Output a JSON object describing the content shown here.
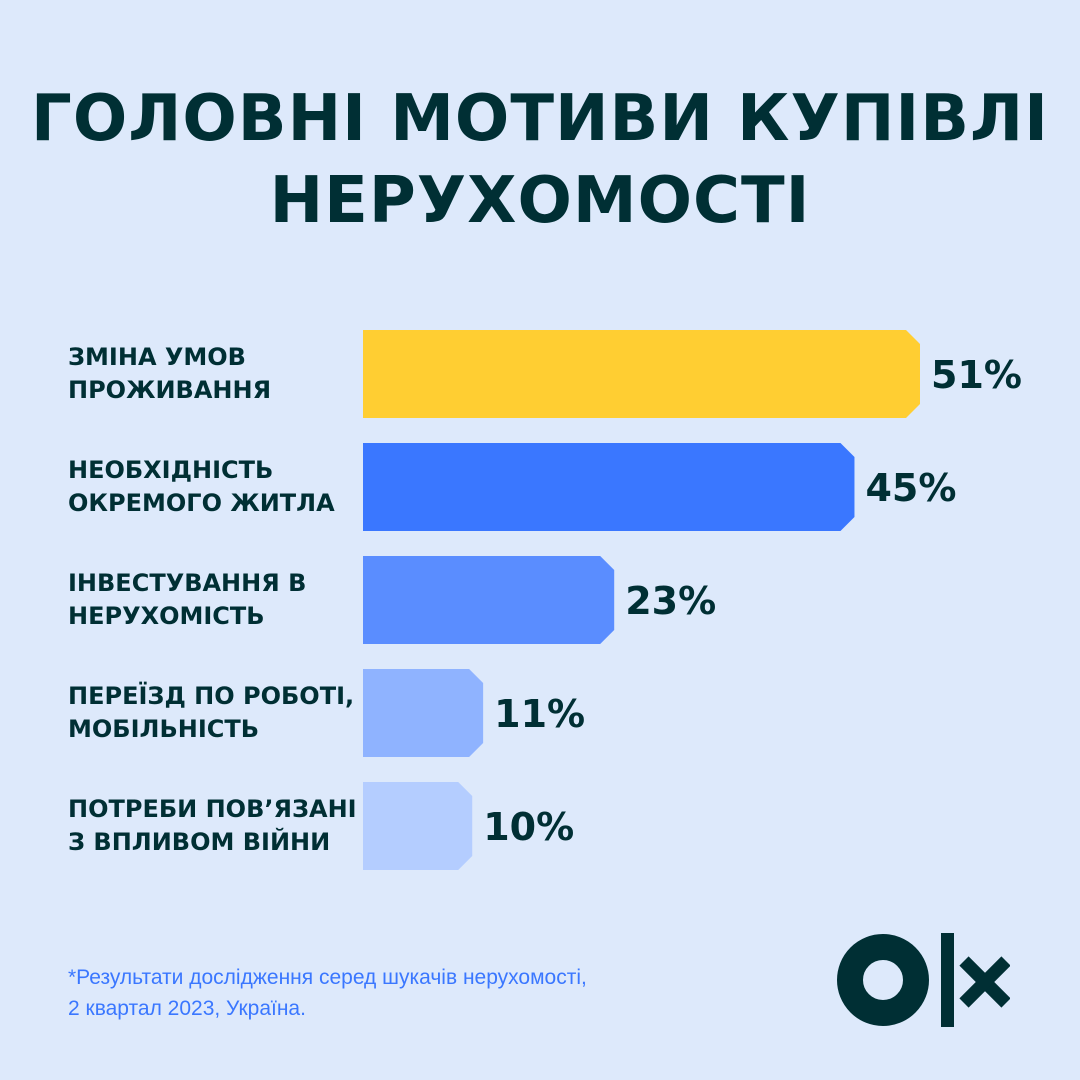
{
  "title": {
    "line1": "ГОЛОВНІ МОТИВИ КУПІВЛІ",
    "line2": "НЕРУХОМОСТІ"
  },
  "chart_data": {
    "type": "bar",
    "orientation": "horizontal",
    "title": "ГОЛОВНІ МОТИВИ КУПІВЛІ НЕРУХОМОСТІ",
    "categories": [
      [
        "ЗМІНА УМОВ",
        "ПРОЖИВАННЯ"
      ],
      [
        "НЕОБХІДНІСТЬ",
        "ОКРЕМОГО ЖИТЛА"
      ],
      [
        "ІНВЕСТУВАННЯ В",
        "НЕРУХОМІСТЬ"
      ],
      [
        "ПЕРЕЇЗД ПО РОБОТІ,",
        "МОБІЛЬНІСТЬ"
      ],
      [
        "ПОТРЕБИ ПОВ’ЯЗАНІ",
        "З ВПЛИВОМ ВІЙНИ"
      ]
    ],
    "values": [
      51,
      45,
      23,
      11,
      10
    ],
    "value_labels": [
      "51%",
      "45%",
      "23%",
      "11%",
      "10%"
    ],
    "colors": [
      "#ffce32",
      "#3a77ff",
      "#5a8dff",
      "#8fb3ff",
      "#b4cdff"
    ],
    "unit": "%",
    "xlabel": "",
    "ylabel": "",
    "grid": false,
    "legend": "none"
  },
  "footnote": {
    "line1": "*Результати дослідження серед шукачів нерухомості,",
    "line2": "2 квартал 2023, Україна."
  },
  "logo": {
    "icon": "olx-logo",
    "color": "#002f34"
  },
  "colors": {
    "background": "#dde9fb",
    "text": "#002f34",
    "accent": "#3a77ff"
  }
}
